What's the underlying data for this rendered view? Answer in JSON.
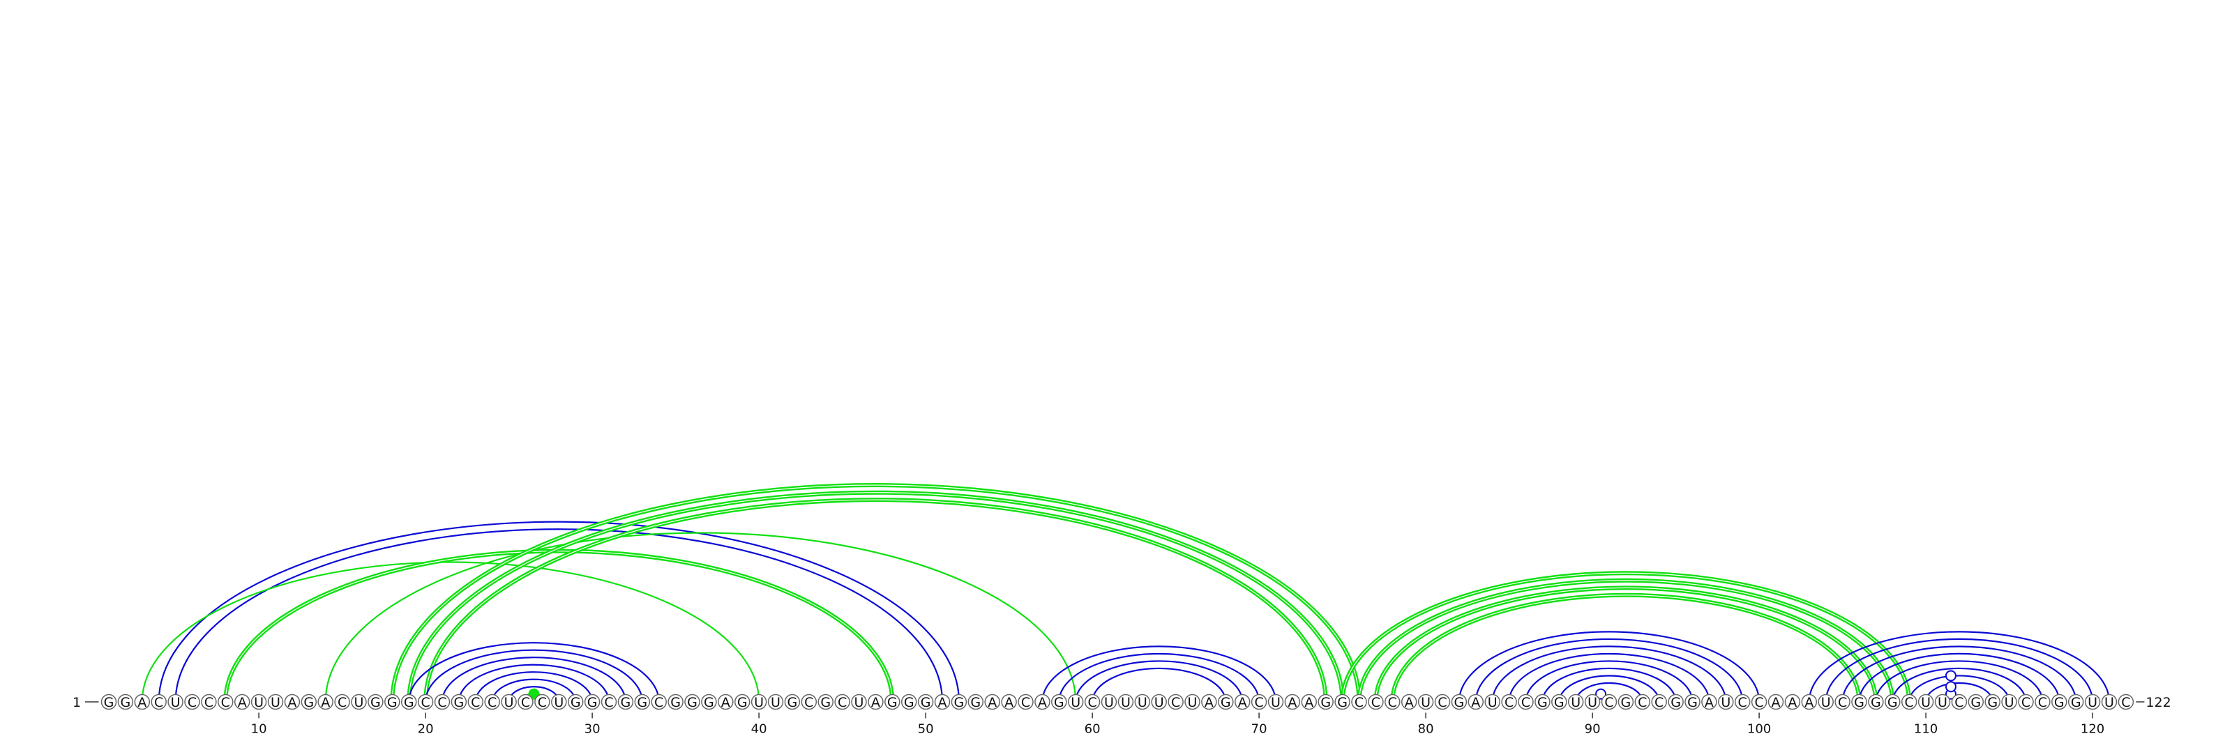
{
  "diagram": {
    "type": "rna-arc-diagram",
    "sequence": "GGACUCCCAUUAGACUGGGCCGCCUCCUGGCGGCGGGAGUUGCGCUAGGGAGGAACAGUCUUUUCUAGACUAAGGCCCAUCGAUCCGGUUCGCCGGAUCCAAAUCGGGCUUCGGUCCGGUUC",
    "start_label": "1",
    "end_label": "122",
    "ticks": [
      10,
      20,
      30,
      40,
      50,
      60,
      70,
      80,
      90,
      100,
      110,
      120
    ],
    "colors": {
      "blue": "#0a0ad6",
      "green": "#11e011",
      "circle_stroke": "#666666"
    },
    "arc_groups": [
      {
        "color": "blue",
        "weight": "thin",
        "pairs": [
          [
            4,
            52
          ],
          [
            5,
            51
          ]
        ]
      },
      {
        "color": "green",
        "weight": "thin",
        "pairs": [
          [
            3,
            40
          ]
        ]
      },
      {
        "color": "green",
        "weight": "thick",
        "pairs": [
          [
            8,
            48
          ]
        ]
      },
      {
        "color": "green",
        "weight": "thin",
        "pairs": [
          [
            14,
            59
          ]
        ]
      },
      {
        "color": "green",
        "weight": "thick",
        "pairs": [
          [
            18,
            76
          ],
          [
            19,
            75
          ],
          [
            20,
            74
          ]
        ]
      },
      {
        "color": "blue",
        "weight": "thin",
        "pairs": [
          [
            19,
            34
          ],
          [
            20,
            33
          ],
          [
            21,
            32
          ],
          [
            22,
            31
          ],
          [
            23,
            30
          ],
          [
            24,
            29
          ],
          [
            25,
            28
          ]
        ]
      },
      {
        "color": "green",
        "weight": "thick",
        "pairs": [
          [
            26,
            27
          ]
        ]
      },
      {
        "color": "blue",
        "weight": "thin",
        "pairs": [
          [
            57,
            71
          ],
          [
            58,
            70
          ],
          [
            59,
            69
          ],
          [
            60,
            68
          ]
        ]
      },
      {
        "color": "green",
        "weight": "thick",
        "pairs": [
          [
            75,
            109
          ],
          [
            76,
            108
          ],
          [
            77,
            107
          ],
          [
            78,
            106
          ]
        ]
      },
      {
        "color": "blue",
        "weight": "thin",
        "pairs": [
          [
            82,
            100
          ],
          [
            83,
            99
          ],
          [
            84,
            98
          ],
          [
            85,
            97
          ],
          [
            86,
            96
          ],
          [
            87,
            95
          ],
          [
            88,
            94
          ],
          [
            89,
            93
          ]
        ]
      },
      {
        "color": "blue",
        "weight": "thin",
        "pairs": [
          [
            103,
            121
          ],
          [
            104,
            120
          ],
          [
            105,
            119
          ],
          [
            106,
            118
          ],
          [
            107,
            117
          ],
          [
            108,
            116
          ],
          [
            109,
            115
          ],
          [
            110,
            114
          ]
        ]
      }
    ],
    "markers": [
      {
        "position": 26.5,
        "height": 1,
        "color": "green",
        "filled": true
      },
      {
        "position": 90.5,
        "height": 1,
        "color": "blue",
        "filled": false
      },
      {
        "position": 111.5,
        "height": 1,
        "color": "blue",
        "filled": false
      },
      {
        "position": 111.5,
        "height": 3,
        "color": "blue",
        "filled": false
      },
      {
        "position": 111.5,
        "height": 6,
        "color": "blue",
        "filled": false
      }
    ]
  }
}
